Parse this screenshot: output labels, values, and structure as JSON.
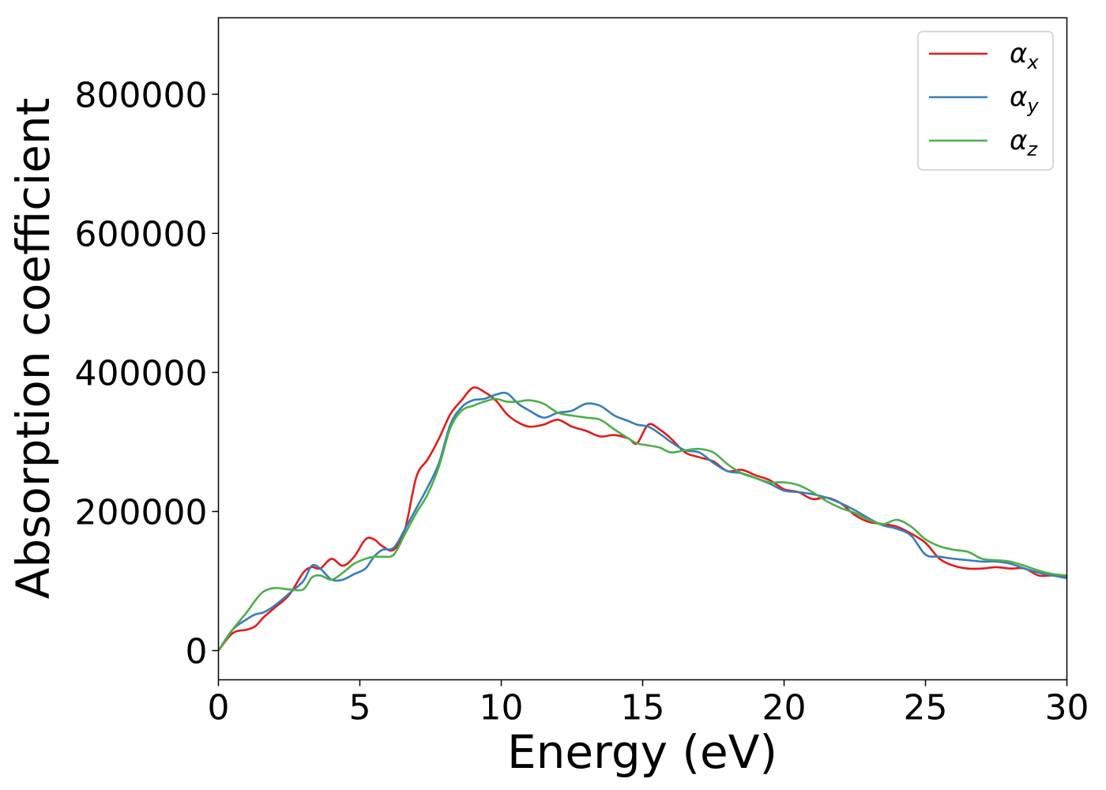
{
  "chart_data": {
    "type": "line",
    "title": "",
    "xlabel": "Energy (eV)",
    "ylabel": "Absorption coefficient",
    "xlim": [
      0,
      30
    ],
    "ylim": [
      -42000,
      910000
    ],
    "xticks": [
      0,
      5,
      10,
      15,
      20,
      25,
      30
    ],
    "yticks": [
      0,
      200000,
      400000,
      600000,
      800000
    ],
    "xtick_labels": [
      "0",
      "5",
      "10",
      "15",
      "20",
      "25",
      "30"
    ],
    "ytick_labels": [
      "0",
      "200000",
      "400000",
      "600000",
      "800000"
    ],
    "grid": false,
    "legend_position": "top-right",
    "series": [
      {
        "name": "α",
        "subscript": "x",
        "color": "#e41a1c",
        "x": [
          0,
          0.5,
          1,
          1.3,
          1.6,
          2,
          2.5,
          3,
          3.3,
          3.6,
          4,
          4.4,
          4.8,
          5.2,
          5.5,
          5.8,
          6.2,
          6.6,
          7,
          7.4,
          7.8,
          8.2,
          8.6,
          9,
          9.4,
          9.8,
          10.2,
          10.6,
          11,
          11.5,
          12,
          12.5,
          13,
          13.5,
          14,
          14.5,
          14.8,
          15.2,
          15.6,
          16,
          16.5,
          17,
          17.5,
          18,
          18.5,
          19,
          19.5,
          20,
          20.5,
          21,
          21.5,
          22,
          22.5,
          23,
          23.5,
          24,
          24.5,
          25,
          25.5,
          26,
          26.5,
          27,
          27.5,
          28,
          28.5,
          29,
          29.5,
          30
        ],
        "y": [
          0,
          25000,
          30000,
          35000,
          48000,
          62000,
          80000,
          112000,
          120000,
          118000,
          132000,
          122000,
          135000,
          160000,
          160000,
          150000,
          145000,
          175000,
          250000,
          275000,
          305000,
          340000,
          360000,
          378000,
          372000,
          360000,
          340000,
          328000,
          322000,
          325000,
          332000,
          322000,
          316000,
          308000,
          310000,
          305000,
          298000,
          325000,
          318000,
          305000,
          285000,
          278000,
          272000,
          258000,
          260000,
          252000,
          245000,
          232000,
          228000,
          218000,
          220000,
          212000,
          195000,
          185000,
          182000,
          178000,
          168000,
          155000,
          132000,
          122000,
          118000,
          118000,
          120000,
          118000,
          118000,
          108000,
          108000,
          105000
        ]
      },
      {
        "name": "α",
        "subscript": "y",
        "color": "#377eb8",
        "x": [
          0,
          0.5,
          1,
          1.3,
          1.6,
          2,
          2.5,
          3,
          3.3,
          3.6,
          4,
          4.4,
          4.8,
          5.2,
          5.5,
          5.8,
          6.2,
          6.6,
          7,
          7.4,
          7.8,
          8.2,
          8.6,
          9,
          9.4,
          9.8,
          10.2,
          10.6,
          11,
          11.5,
          12,
          12.5,
          13,
          13.5,
          14,
          14.5,
          14.8,
          15.2,
          15.6,
          16,
          16.5,
          17,
          17.5,
          18,
          18.5,
          19,
          19.5,
          20,
          20.5,
          21,
          21.5,
          22,
          22.5,
          23,
          23.5,
          24,
          24.5,
          25,
          25.5,
          26,
          26.5,
          27,
          27.5,
          28,
          28.5,
          29,
          29.5,
          30
        ],
        "y": [
          0,
          30000,
          45000,
          52000,
          55000,
          65000,
          82000,
          100000,
          122000,
          118000,
          102000,
          102000,
          110000,
          118000,
          135000,
          145000,
          148000,
          175000,
          205000,
          235000,
          270000,
          325000,
          350000,
          360000,
          362000,
          368000,
          370000,
          355000,
          345000,
          335000,
          342000,
          345000,
          355000,
          352000,
          338000,
          330000,
          325000,
          322000,
          312000,
          300000,
          288000,
          285000,
          270000,
          258000,
          255000,
          248000,
          240000,
          230000,
          228000,
          225000,
          220000,
          212000,
          202000,
          190000,
          180000,
          175000,
          165000,
          138000,
          135000,
          132000,
          130000,
          128000,
          128000,
          125000,
          118000,
          112000,
          108000,
          104000
        ]
      },
      {
        "name": "α",
        "subscript": "z",
        "color": "#4daf4a",
        "x": [
          0,
          0.5,
          1,
          1.3,
          1.6,
          2,
          2.5,
          3,
          3.3,
          3.6,
          4,
          4.4,
          4.8,
          5.2,
          5.5,
          5.8,
          6.2,
          6.6,
          7,
          7.4,
          7.8,
          8.2,
          8.6,
          9,
          9.4,
          9.8,
          10.2,
          10.6,
          11,
          11.5,
          12,
          12.5,
          13,
          13.5,
          14,
          14.5,
          14.8,
          15.2,
          15.6,
          16,
          16.5,
          17,
          17.5,
          18,
          18.5,
          19,
          19.5,
          20,
          20.5,
          21,
          21.5,
          22,
          22.5,
          23,
          23.5,
          24,
          24.5,
          25,
          25.5,
          26,
          26.5,
          27,
          27.5,
          28,
          28.5,
          29,
          29.5,
          30
        ],
        "y": [
          0,
          30000,
          55000,
          72000,
          85000,
          90000,
          88000,
          88000,
          105000,
          108000,
          102000,
          112000,
          125000,
          132000,
          135000,
          135000,
          138000,
          168000,
          198000,
          225000,
          265000,
          320000,
          345000,
          352000,
          358000,
          362000,
          358000,
          358000,
          360000,
          355000,
          342000,
          338000,
          335000,
          332000,
          318000,
          305000,
          298000,
          295000,
          292000,
          285000,
          288000,
          290000,
          285000,
          268000,
          255000,
          248000,
          242000,
          242000,
          238000,
          228000,
          215000,
          205000,
          198000,
          188000,
          182000,
          188000,
          178000,
          160000,
          150000,
          145000,
          142000,
          132000,
          130000,
          128000,
          122000,
          115000,
          110000,
          108000
        ]
      }
    ]
  }
}
